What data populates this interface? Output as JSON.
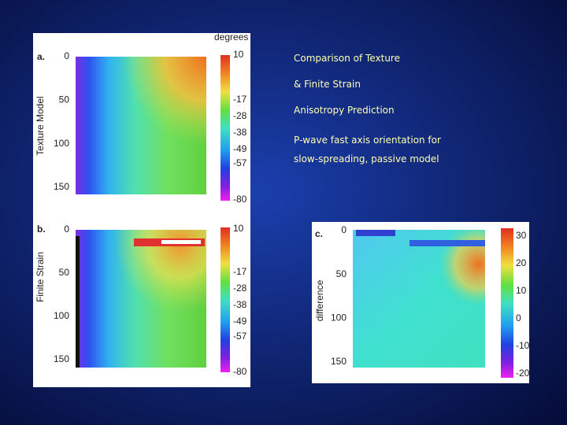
{
  "title_lines": [
    "Comparison of Texture",
    "& Finite Strain",
    "Anisotropy Prediction"
  ],
  "subtitle_lines": [
    "P-wave fast axis orientation for",
    "slow-spreading, passive model"
  ],
  "panels": [
    {
      "label": "a.",
      "ylabel": "Texture Model",
      "yticks": [
        0,
        50,
        100,
        150
      ],
      "colorbar_title": "degrees",
      "colorbar_ticks": [
        10,
        -17,
        -28,
        -38,
        -49,
        -57,
        -80
      ]
    },
    {
      "label": "b.",
      "ylabel": "Finite Strain",
      "yticks": [
        0,
        50,
        100,
        150
      ],
      "colorbar_ticks": [
        10,
        -17,
        -28,
        -38,
        -49,
        -57,
        -80
      ]
    },
    {
      "label": "c.",
      "ylabel": "difference",
      "yticks": [
        0,
        50,
        100,
        150
      ],
      "colorbar_ticks": [
        30,
        20,
        10,
        0,
        -10,
        -20
      ]
    }
  ]
}
